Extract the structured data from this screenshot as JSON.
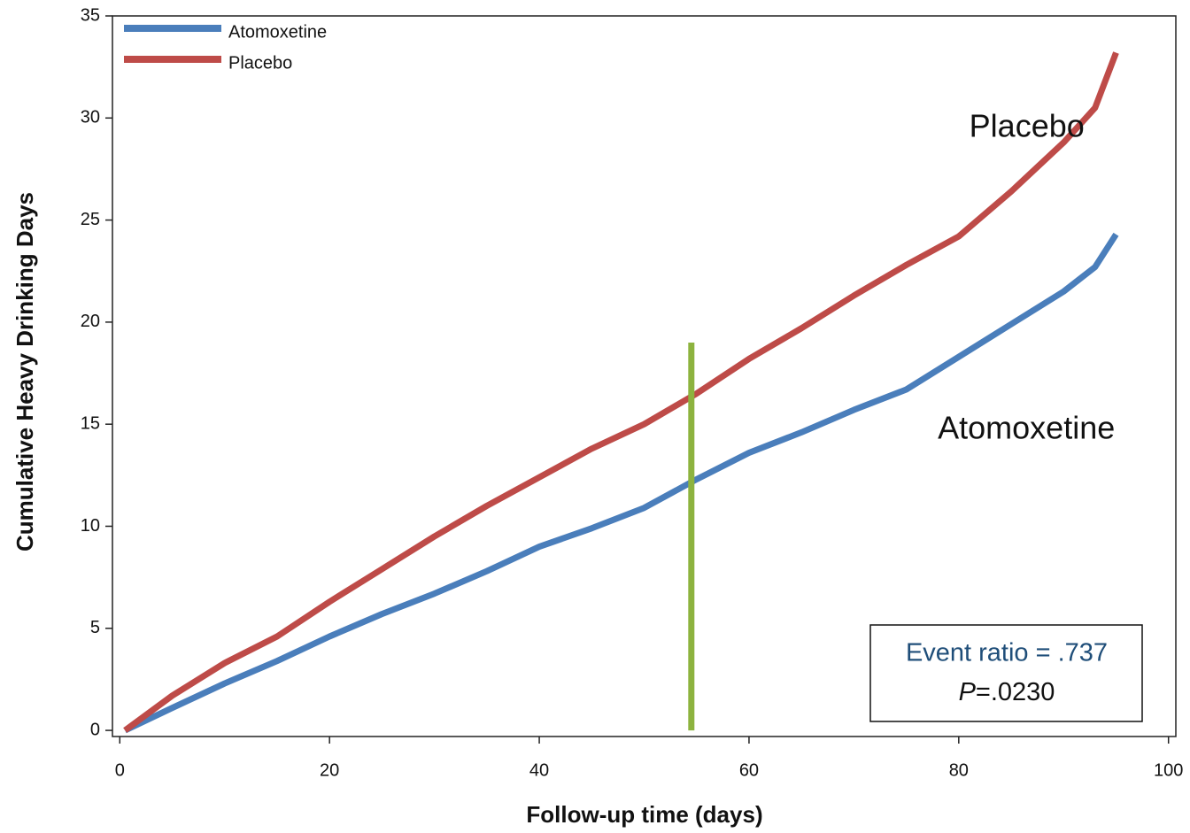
{
  "chart_data": {
    "type": "line",
    "x_label": "Follow-up time (days)",
    "y_label": "Cumulative Heavy Drinking Days",
    "x": [
      0.5,
      5,
      10,
      15,
      20,
      25,
      30,
      35,
      40,
      45,
      50,
      55,
      60,
      65,
      70,
      75,
      80,
      85,
      90,
      93,
      95
    ],
    "series": [
      {
        "name": "Atomoxetine",
        "color": "#4a7ebb",
        "values": [
          0,
          1.1,
          2.3,
          3.4,
          4.6,
          5.7,
          6.7,
          7.8,
          9.0,
          9.9,
          10.9,
          12.3,
          13.6,
          14.6,
          15.7,
          16.7,
          18.3,
          19.9,
          21.5,
          22.7,
          24.3
        ]
      },
      {
        "name": "Placebo",
        "color": "#be4b48",
        "values": [
          0,
          1.7,
          3.3,
          4.6,
          6.3,
          7.9,
          9.5,
          11.0,
          12.4,
          13.8,
          15.0,
          16.5,
          18.2,
          19.7,
          21.3,
          22.8,
          24.2,
          26.4,
          28.8,
          30.5,
          33.2
        ]
      }
    ],
    "xlim": [
      -0.7,
      100.7
    ],
    "ylim": [
      -0.3,
      35
    ],
    "xticks": [
      0,
      20,
      40,
      60,
      80,
      100
    ],
    "yticks": [
      0,
      5,
      10,
      15,
      20,
      25,
      30,
      35
    ],
    "legend": "top-left",
    "reference_line": {
      "x": 54.5,
      "from": 0,
      "to": 19,
      "color": "#8db33f"
    },
    "annotations": [
      {
        "text": "Placebo",
        "x": 81,
        "y": 29.5
      },
      {
        "text": "Atomoxetine",
        "x": 78,
        "y": 14.7
      }
    ],
    "stats_box": {
      "event_ratio": "Event ratio = .737",
      "p_symbol": "P",
      "p_value": "=.0230"
    }
  }
}
